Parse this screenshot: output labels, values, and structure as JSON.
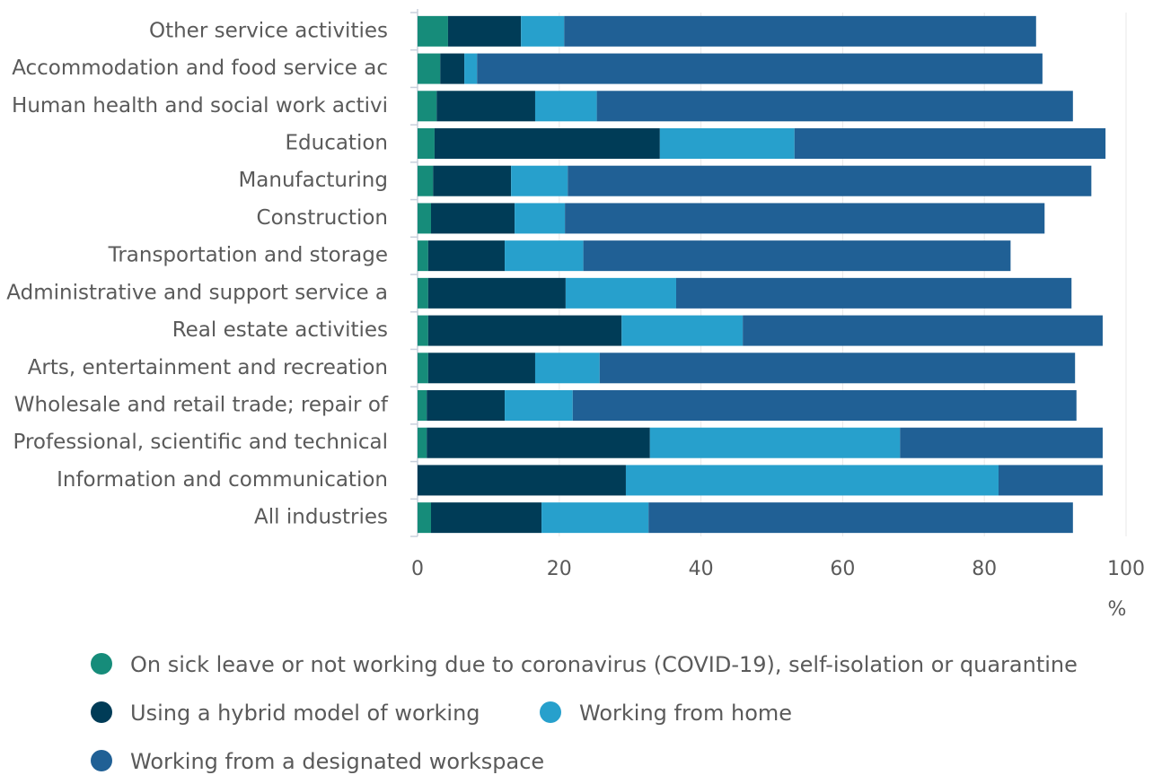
{
  "chart_data": {
    "type": "stacked-bar-horizontal",
    "categories": [
      "Other service activities",
      "Accommodation and food service ac",
      "Human health and social work activi",
      "Education",
      "Manufacturing",
      "Construction",
      "Transportation and storage",
      "Administrative and support service a",
      "Real estate activities",
      "Arts, entertainment and recreation",
      "Wholesale and retail trade; repair of",
      "Professional, scientific and technical",
      "Information and communication",
      "All industries"
    ],
    "series": [
      {
        "name": "On sick leave or not working due to coronavirus (COVID-19), self-isolation or quarantine",
        "color": "#168c7a",
        "values": [
          4.3,
          3.2,
          2.7,
          2.4,
          2.2,
          1.9,
          1.5,
          1.5,
          1.5,
          1.5,
          1.3,
          1.3,
          0,
          1.9
        ]
      },
      {
        "name": "Using a hybrid model of working",
        "color": "#003c57",
        "values": [
          10.3,
          3.4,
          13.9,
          31.8,
          11.0,
          11.8,
          10.8,
          19.4,
          27.3,
          15.1,
          11.0,
          31.5,
          29.4,
          15.6
        ]
      },
      {
        "name": "Working from home",
        "color": "#27a0cc",
        "values": [
          6.1,
          1.8,
          8.7,
          19.0,
          8.0,
          7.1,
          11.1,
          15.6,
          17.1,
          9.1,
          9.6,
          35.3,
          52.6,
          15.1
        ]
      },
      {
        "name": "Working from a designated workspace",
        "color": "#206095",
        "values": [
          66.6,
          79.8,
          67.2,
          43.9,
          73.9,
          67.7,
          60.3,
          55.8,
          50.8,
          67.1,
          71.1,
          28.6,
          14.7,
          59.9
        ]
      }
    ],
    "xlim": [
      0,
      100
    ],
    "xticks": [
      0,
      20,
      40,
      60,
      80,
      100
    ],
    "xlabel": "%",
    "grid": true
  }
}
